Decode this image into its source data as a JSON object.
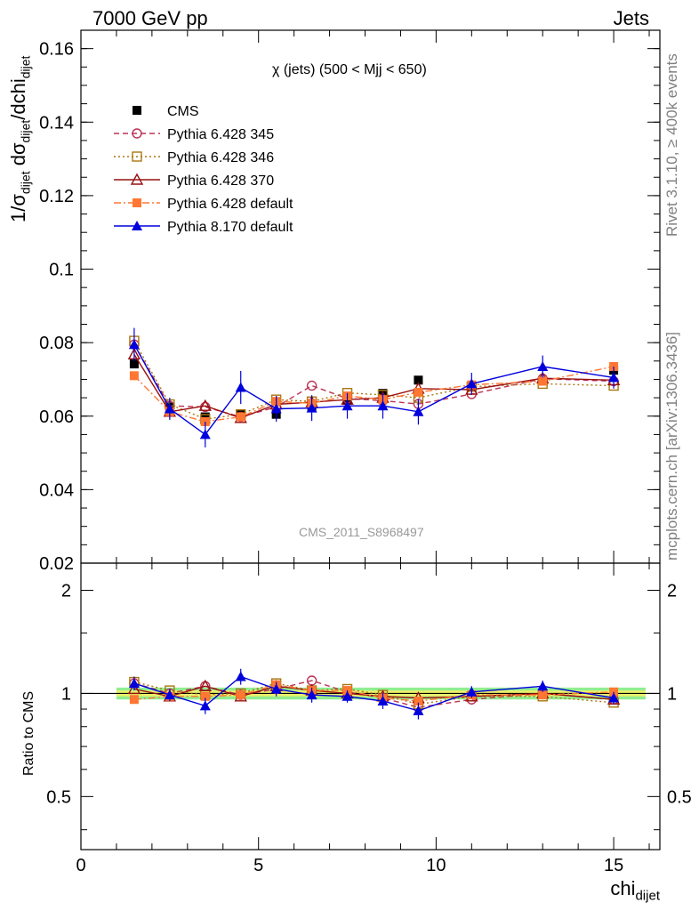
{
  "header": {
    "left": "7000 GeV pp",
    "right": "Jets"
  },
  "side": {
    "rivet": "Rivet 3.1.10, ≥ 400k events",
    "mcplots": "mcplots.cern.ch [arXiv:1306.3436]"
  },
  "plot_title": "χ (jets) (500 < Mjj <  650)",
  "watermark": "CMS_2011_S8968497",
  "colors": {
    "band_inner": "#e8f06a",
    "band_outer": "#90ee90"
  },
  "chart_data": [
    {
      "type": "line",
      "panel": "main",
      "ylabel": "1/σdijet dσdijet/dchidijet",
      "ylim": [
        0.02,
        0.165
      ],
      "xlim": [
        0,
        16.3
      ],
      "y_ticks": [
        "0.02",
        "0.04",
        "0.06",
        "0.08",
        "0.1",
        "0.12",
        "0.14",
        "0.16"
      ],
      "legend_position": "top-left",
      "series": [
        {
          "name": "CMS",
          "color": "#000000",
          "marker": "filled-square",
          "line": "none",
          "x": [
            1.5,
            2.5,
            3.5,
            4.5,
            5.5,
            6.5,
            7.5,
            8.5,
            9.5,
            15
          ],
          "y": [
            0.0742,
            0.0625,
            0.0598,
            0.0605,
            0.0605,
            0.0625,
            0.0643,
            0.0662,
            0.0698,
            0.0725
          ]
        },
        {
          "name": "Pythia 6.428 345",
          "color": "#bb3355",
          "marker": "open-circle",
          "line": "dashed",
          "x": [
            1.5,
            2.5,
            3.5,
            4.5,
            5.5,
            6.5,
            7.5,
            8.5,
            9.5,
            11,
            13,
            15
          ],
          "y": [
            0.0795,
            0.0628,
            0.0625,
            0.0598,
            0.0625,
            0.0683,
            0.0648,
            0.0642,
            0.0633,
            0.066,
            0.0702,
            0.0695
          ]
        },
        {
          "name": "Pythia 6.428 346",
          "color": "#aa7711",
          "marker": "open-square",
          "line": "dotted",
          "x": [
            1.5,
            2.5,
            3.5,
            4.5,
            5.5,
            6.5,
            7.5,
            8.5,
            9.5,
            11,
            13,
            15
          ],
          "y": [
            0.0805,
            0.0632,
            0.0592,
            0.0605,
            0.0645,
            0.064,
            0.0663,
            0.0658,
            0.065,
            0.068,
            0.0688,
            0.0683
          ]
        },
        {
          "name": "Pythia 6.428 370",
          "color": "#991111",
          "marker": "open-triangle",
          "line": "solid",
          "x": [
            1.5,
            2.5,
            3.5,
            4.5,
            5.5,
            6.5,
            7.5,
            8.5,
            9.5,
            11,
            13,
            15
          ],
          "y": [
            0.0768,
            0.0612,
            0.0628,
            0.0595,
            0.0632,
            0.0638,
            0.0645,
            0.065,
            0.0675,
            0.0672,
            0.0703,
            0.0698
          ]
        },
        {
          "name": "Pythia 6.428 default",
          "color": "#ff7733",
          "marker": "filled-square",
          "line": "dashdot",
          "x": [
            1.5,
            2.5,
            3.5,
            4.5,
            5.5,
            6.5,
            7.5,
            8.5,
            9.5,
            11,
            13,
            15
          ],
          "y": [
            0.071,
            0.0612,
            0.0585,
            0.0598,
            0.064,
            0.0635,
            0.0655,
            0.0645,
            0.0665,
            0.0685,
            0.0695,
            0.0735
          ]
        },
        {
          "name": "Pythia 8.170 default",
          "color": "#0000dd",
          "marker": "filled-triangle",
          "line": "solid",
          "x": [
            1.5,
            2.5,
            3.5,
            4.5,
            5.5,
            6.5,
            7.5,
            8.5,
            9.5,
            11,
            13,
            15
          ],
          "y": [
            0.0795,
            0.062,
            0.055,
            0.0678,
            0.062,
            0.0622,
            0.0628,
            0.0628,
            0.0612,
            0.0688,
            0.0735,
            0.0705
          ],
          "err": [
            0.0045,
            0.003,
            0.0035,
            0.0045,
            0.0035,
            0.0035,
            0.0035,
            0.0035,
            0.0035,
            0.003,
            0.003,
            0.003
          ]
        }
      ]
    },
    {
      "type": "line",
      "panel": "ratio",
      "ylabel": "Ratio to CMS",
      "ylim": [
        0.35,
        2.4
      ],
      "y_scale": "log",
      "xlim": [
        0,
        16.3
      ],
      "xlabel": "chidijet",
      "x_ticks": [
        "0",
        "5",
        "10",
        "15"
      ],
      "y_ticks": [
        "0.5",
        "1",
        "2"
      ],
      "series": [
        {
          "name": "Pythia 6.428 345",
          "color": "#bb3355",
          "marker": "open-circle",
          "line": "dashed",
          "x": [
            1.5,
            2.5,
            3.5,
            4.5,
            5.5,
            6.5,
            7.5,
            8.5,
            9.5,
            11,
            13,
            15
          ],
          "y": [
            1.07,
            1.0,
            1.05,
            0.99,
            1.03,
            1.09,
            1.01,
            0.97,
            0.91,
            0.96,
            1.0,
            0.96
          ]
        },
        {
          "name": "Pythia 6.428 346",
          "color": "#aa7711",
          "marker": "open-square",
          "line": "dotted",
          "x": [
            1.5,
            2.5,
            3.5,
            4.5,
            5.5,
            6.5,
            7.5,
            8.5,
            9.5,
            11,
            13,
            15
          ],
          "y": [
            1.08,
            1.02,
            0.99,
            1.0,
            1.07,
            1.02,
            1.03,
            0.99,
            0.93,
            0.98,
            0.98,
            0.94
          ]
        },
        {
          "name": "Pythia 6.428 370",
          "color": "#991111",
          "marker": "open-triangle",
          "line": "solid",
          "x": [
            1.5,
            2.5,
            3.5,
            4.5,
            5.5,
            6.5,
            7.5,
            8.5,
            9.5,
            11,
            13,
            15
          ],
          "y": [
            1.03,
            0.98,
            1.05,
            0.98,
            1.05,
            1.02,
            1.0,
            0.98,
            0.97,
            0.98,
            1.0,
            0.96
          ]
        },
        {
          "name": "Pythia 6.428 default",
          "color": "#ff7733",
          "marker": "filled-square",
          "line": "dashdot",
          "x": [
            1.5,
            2.5,
            3.5,
            4.5,
            5.5,
            6.5,
            7.5,
            8.5,
            9.5,
            11,
            13,
            15
          ],
          "y": [
            0.96,
            0.98,
            0.98,
            0.99,
            1.06,
            1.02,
            1.02,
            0.97,
            0.95,
            0.99,
            0.99,
            1.01
          ]
        },
        {
          "name": "Pythia 8.170 default",
          "color": "#0000dd",
          "marker": "filled-triangle",
          "line": "solid",
          "x": [
            1.5,
            2.5,
            3.5,
            4.5,
            5.5,
            6.5,
            7.5,
            8.5,
            9.5,
            11,
            13,
            15
          ],
          "y": [
            1.07,
            0.99,
            0.92,
            1.12,
            1.03,
            0.99,
            0.98,
            0.95,
            0.89,
            1.01,
            1.05,
            0.97
          ],
          "err": [
            0.05,
            0.04,
            0.05,
            0.06,
            0.05,
            0.05,
            0.04,
            0.05,
            0.05,
            0.04,
            0.04,
            0.04
          ]
        }
      ]
    }
  ]
}
